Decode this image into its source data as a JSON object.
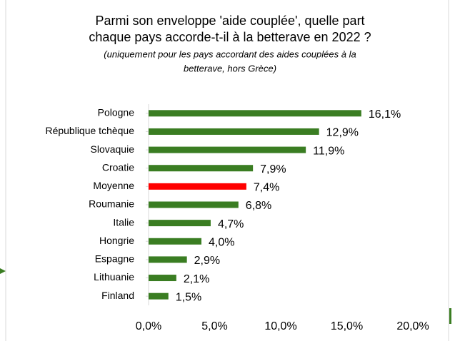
{
  "chart_data": {
    "type": "barh",
    "title": [
      "Parmi son enveloppe 'aide couplée', quelle part",
      "chaque pays accorde-t-il à la betterave en 2022 ?"
    ],
    "subtitle": [
      "(uniquement pour les pays accordant des aides couplées à la",
      "betterave, hors Grèce)"
    ],
    "categories": [
      "Pologne",
      "République tchèque",
      "Slovaquie",
      "Croatie",
      "Moyenne",
      "Roumanie",
      "Italie",
      "Hongrie",
      "Espagne",
      "Lithuanie",
      "Finland"
    ],
    "values": [
      16.1,
      12.9,
      11.9,
      7.9,
      7.4,
      6.8,
      4.7,
      4.0,
      2.9,
      2.1,
      1.5
    ],
    "value_labels": [
      "16,1%",
      "12,9%",
      "11,9%",
      "7,9%",
      "7,4%",
      "6,8%",
      "4,7%",
      "4,0%",
      "2,9%",
      "2,1%",
      "1,5%"
    ],
    "colors": [
      "#3a7d22",
      "#3a7d22",
      "#3a7d22",
      "#3a7d22",
      "#ff0000",
      "#3a7d22",
      "#3a7d22",
      "#3a7d22",
      "#3a7d22",
      "#3a7d22",
      "#3a7d22"
    ],
    "xlim": [
      0,
      20
    ],
    "xticks": [
      {
        "value": 0,
        "label": "0,0%"
      },
      {
        "value": 5,
        "label": "5,0%"
      },
      {
        "value": 10,
        "label": "10,0%"
      },
      {
        "value": 15,
        "label": "15,0%"
      },
      {
        "value": 20,
        "label": "20,0%"
      }
    ],
    "grid": false
  }
}
